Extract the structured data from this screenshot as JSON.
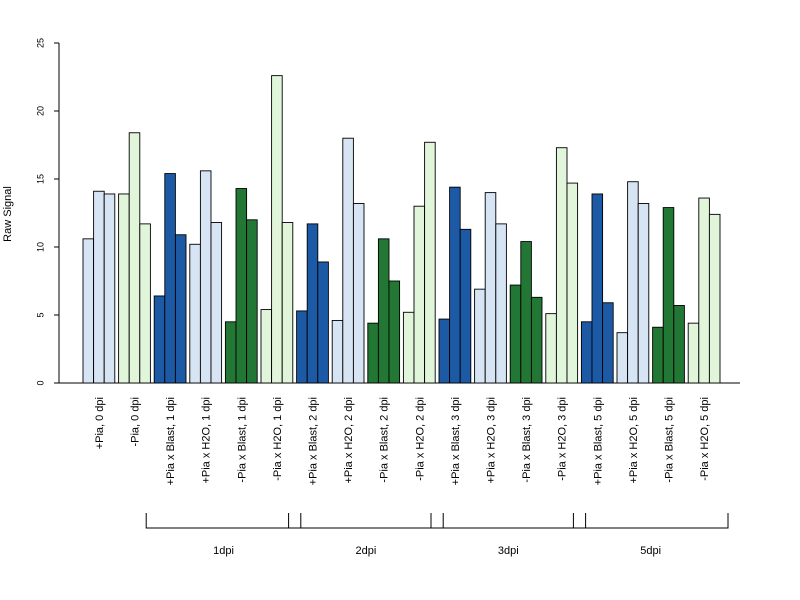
{
  "chart_data": {
    "type": "bar",
    "ylabel": "Raw Signal",
    "ylim": [
      0,
      25
    ],
    "yticks": [
      0,
      5,
      10,
      15,
      20,
      25
    ],
    "grid": false,
    "colors": {
      "light_blue": "#d6e4f4",
      "dark_blue": "#1d5aa6",
      "light_green": "#e0f5da",
      "dark_green": "#237734",
      "outline": "#000000"
    },
    "categories": [
      {
        "label": "+Pia, 0 dpi",
        "color": "light_blue",
        "values": [
          10.6,
          14.1,
          13.9
        ]
      },
      {
        "label": "-Pia, 0 dpi",
        "color": "light_green",
        "values": [
          13.9,
          18.4,
          11.7
        ]
      },
      {
        "label": "+Pia x Blast, 1 dpi",
        "color": "dark_blue",
        "values": [
          6.4,
          15.4,
          10.9
        ]
      },
      {
        "label": "+Pia x H2O, 1 dpi",
        "color": "light_blue",
        "values": [
          10.2,
          15.6,
          11.8
        ]
      },
      {
        "label": "-Pia x Blast, 1 dpi",
        "color": "dark_green",
        "values": [
          4.5,
          14.3,
          12.0
        ]
      },
      {
        "label": "-Pia x H2O, 1 dpi",
        "color": "light_green",
        "values": [
          5.4,
          22.6,
          11.8
        ]
      },
      {
        "label": "+Pia x Blast, 2 dpi",
        "color": "dark_blue",
        "values": [
          5.3,
          11.7,
          8.9
        ]
      },
      {
        "label": "+Pia x H2O, 2 dpi",
        "color": "light_blue",
        "values": [
          4.6,
          18.0,
          13.2
        ]
      },
      {
        "label": "-Pia x Blast, 2 dpi",
        "color": "dark_green",
        "values": [
          4.4,
          10.6,
          7.5
        ]
      },
      {
        "label": "-Pia x H2O, 2 dpi",
        "color": "light_green",
        "values": [
          5.2,
          13.0,
          17.7
        ]
      },
      {
        "label": "+Pia x Blast, 3 dpi",
        "color": "dark_blue",
        "values": [
          4.7,
          14.4,
          11.3
        ]
      },
      {
        "label": "+Pia x H2O, 3 dpi",
        "color": "light_blue",
        "values": [
          6.9,
          14.0,
          11.7
        ]
      },
      {
        "label": "-Pia x Blast, 3 dpi",
        "color": "dark_green",
        "values": [
          7.2,
          10.4,
          6.3
        ]
      },
      {
        "label": "-Pia x H2O, 3 dpi",
        "color": "light_green",
        "values": [
          5.1,
          17.3,
          14.7
        ]
      },
      {
        "label": "+Pia x Blast, 5 dpi",
        "color": "dark_blue",
        "values": [
          4.5,
          13.9,
          5.9
        ]
      },
      {
        "label": "+Pia x H2O, 5 dpi",
        "color": "light_blue",
        "values": [
          3.7,
          14.8,
          13.2
        ]
      },
      {
        "label": "-Pia x Blast, 5 dpi",
        "color": "dark_green",
        "values": [
          4.1,
          12.9,
          5.7
        ]
      },
      {
        "label": "-Pia x H2O, 5 dpi",
        "color": "light_green",
        "values": [
          4.4,
          13.6,
          12.4
        ]
      }
    ],
    "groups": [
      {
        "label": "1dpi",
        "first": 2,
        "last": 5
      },
      {
        "label": "2dpi",
        "first": 6,
        "last": 9
      },
      {
        "label": "3dpi",
        "first": 10,
        "last": 13
      },
      {
        "label": "5dpi",
        "first": 14,
        "last": 17
      }
    ]
  }
}
